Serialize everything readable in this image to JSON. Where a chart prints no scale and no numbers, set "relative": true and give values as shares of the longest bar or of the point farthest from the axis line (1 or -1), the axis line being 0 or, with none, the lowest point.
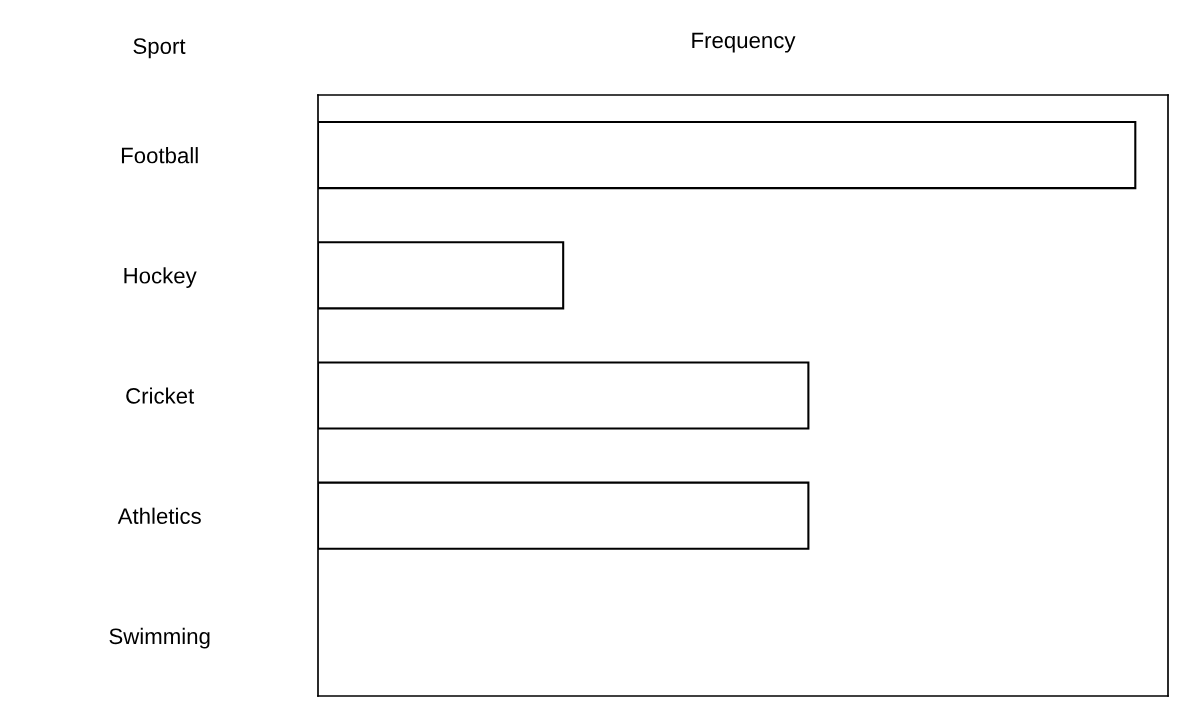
{
  "chart_data": {
    "type": "bar",
    "orientation": "horizontal",
    "relative": true,
    "xlabel": "Frequency",
    "ylabel": "Sport",
    "categories": [
      "Football",
      "Hockey",
      "Cricket",
      "Athletics",
      "Swimming"
    ],
    "values": [
      1,
      0.3,
      0.6,
      0.6,
      0
    ],
    "color": "#ffffff",
    "grid": false,
    "legend": false
  }
}
